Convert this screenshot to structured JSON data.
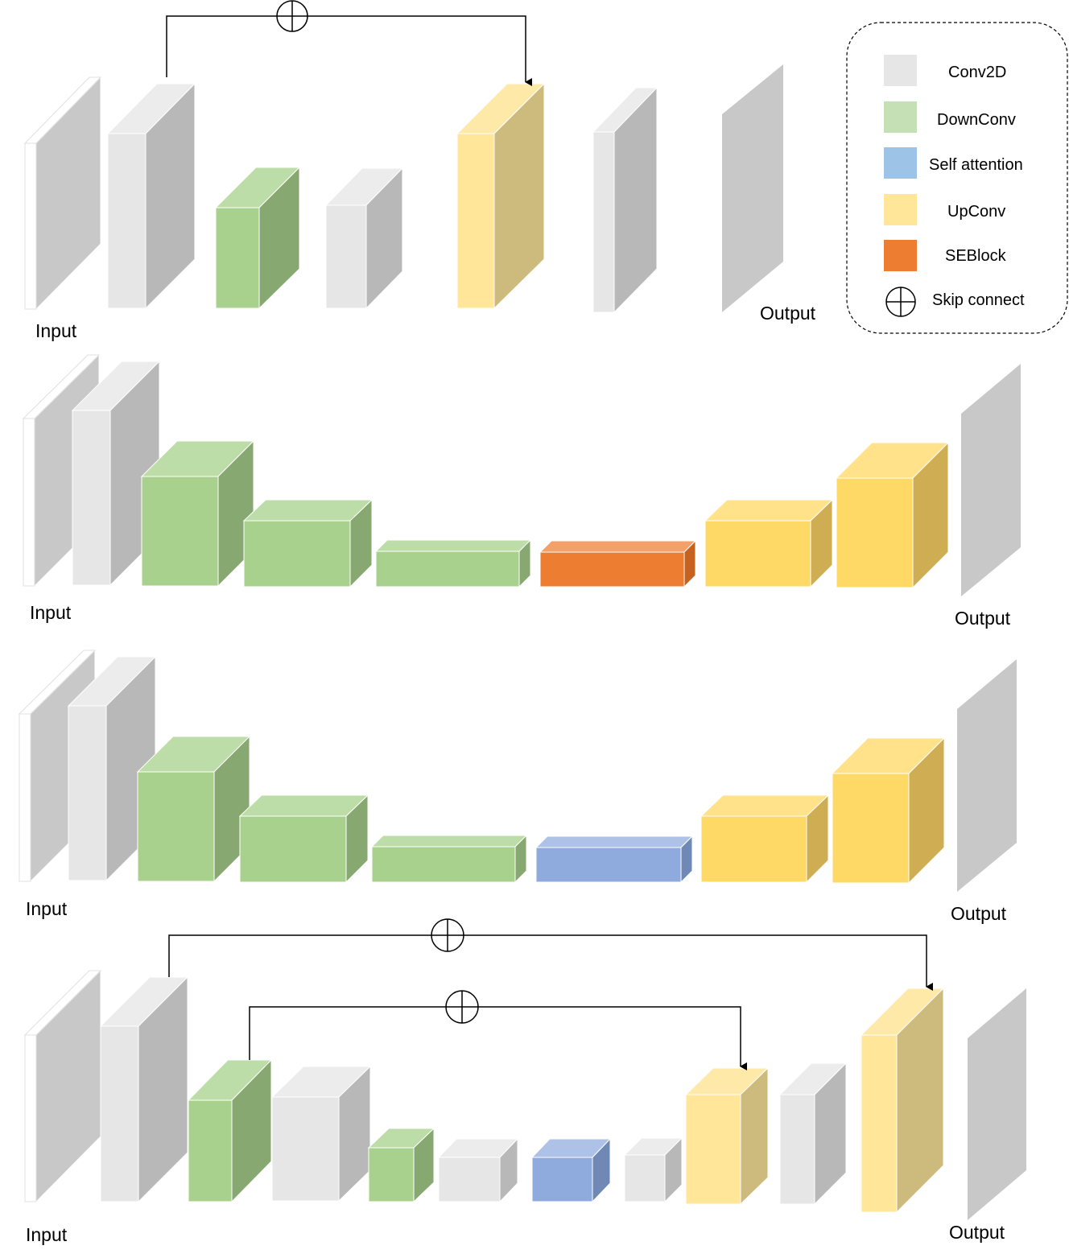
{
  "colors": {
    "conv2d": "#e6e6e6",
    "downconv": "#a9d18e",
    "self_attention": "#8faadc",
    "upconv": "#ffe699",
    "upconv_saturated": "#ffd966",
    "seblock": "#ed7d31",
    "input_face": "#ffffff",
    "output_face": "#c8c8c8",
    "line": "#000000"
  },
  "legend": {
    "items": [
      {
        "key": "conv2d",
        "label": "Conv2D"
      },
      {
        "key": "downconv",
        "label": "DownConv"
      },
      {
        "key": "self_attention",
        "label": "Self attention"
      },
      {
        "key": "upconv",
        "label": "UpConv"
      },
      {
        "key": "seblock",
        "label": "SEBlock"
      },
      {
        "key": "skip",
        "label": "Skip connect",
        "icon": "circle-plus-icon"
      }
    ]
  },
  "panels": [
    {
      "name": "panel-1",
      "input_label": "Input",
      "output_label": "Output",
      "blocks": [
        "input",
        "conv2d",
        "downconv",
        "conv2d",
        "upconv",
        "conv2d",
        "output"
      ],
      "skip_connections": [
        {
          "from": "conv2d",
          "to": "upconv"
        }
      ]
    },
    {
      "name": "panel-2",
      "input_label": "Input",
      "output_label": "Output",
      "blocks": [
        "input",
        "conv2d",
        "downconv",
        "downconv",
        "downconv",
        "seblock",
        "upconv",
        "upconv",
        "output"
      ],
      "skip_connections": []
    },
    {
      "name": "panel-3",
      "input_label": "Input",
      "output_label": "Output",
      "blocks": [
        "input",
        "conv2d",
        "downconv",
        "downconv",
        "downconv",
        "self_attention",
        "upconv",
        "upconv",
        "output"
      ],
      "skip_connections": []
    },
    {
      "name": "panel-4",
      "input_label": "Input",
      "output_label": "Output",
      "blocks": [
        "input",
        "conv2d",
        "downconv",
        "conv2d",
        "downconv",
        "conv2d",
        "self_attention",
        "conv2d",
        "upconv",
        "conv2d",
        "upconv",
        "output"
      ],
      "skip_connections": [
        {
          "from": "conv2d",
          "to": "upconv"
        },
        {
          "from": "downconv",
          "to": "upconv"
        }
      ]
    }
  ]
}
